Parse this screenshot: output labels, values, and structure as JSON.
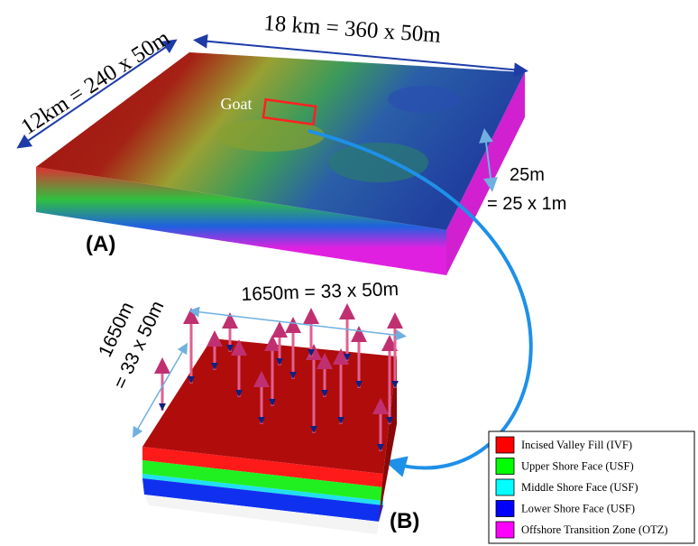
{
  "panel_a": {
    "label": "(A)",
    "width_label": "18 km = 360 x 50m",
    "depth_label": "12km = 240 x 50m",
    "site_label": "Goat",
    "thickness_label": "25m",
    "thickness_detail": "= 25 x 1m"
  },
  "panel_b": {
    "label": "(B)",
    "width_label": "1650m = 33 x 50m",
    "depth_label": "1650m",
    "depth_detail": "= 33 x 50m"
  },
  "legend": {
    "items": [
      {
        "label": "Incised Valley Fill (IVF)",
        "color": "#ff0000"
      },
      {
        "label": "Upper Shore Face (USF)",
        "color": "#00ff00"
      },
      {
        "label": "Middle Shore Face (USF)",
        "color": "#00ffff"
      },
      {
        "label": "Lower Shore Face (USF)",
        "color": "#0000ff"
      },
      {
        "label": "Offshore Transition Zone (OTZ)",
        "color": "#ff00ff"
      }
    ]
  }
}
